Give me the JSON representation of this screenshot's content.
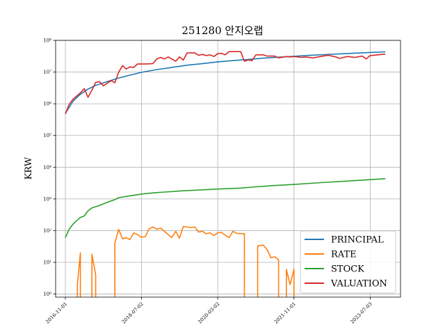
{
  "chart_data": {
    "type": "line",
    "title": "251280 안지오랩",
    "xlabel": "",
    "ylabel": "KRW",
    "y_scale": "log",
    "ylim": [
      0.8,
      100000000
    ],
    "xlim": [
      "2016-08-15",
      "2024-03-01"
    ],
    "yticks": [
      {
        "value": 1,
        "label": "10⁰"
      },
      {
        "value": 10,
        "label": "10¹"
      },
      {
        "value": 100,
        "label": "10²"
      },
      {
        "value": 1000,
        "label": "10³"
      },
      {
        "value": 10000,
        "label": "10⁴"
      },
      {
        "value": 100000,
        "label": "10⁵"
      },
      {
        "value": 1000000,
        "label": "10⁶"
      },
      {
        "value": 10000000,
        "label": "10⁷"
      },
      {
        "value": 100000000,
        "label": "10⁸"
      }
    ],
    "xticks": [
      "2016-11-01",
      "2018-07-02",
      "2020-03-02",
      "2021-11-01",
      "2023-07-03"
    ],
    "grid": true,
    "legend_position": "lower-right",
    "series": [
      {
        "name": "PRINCIPAL",
        "color": "#1f77b4",
        "points": [
          [
            "2016-11-01",
            500000
          ],
          [
            "2017-01-01",
            1200000
          ],
          [
            "2017-03-01",
            2000000
          ],
          [
            "2017-05-01",
            2900000
          ],
          [
            "2017-07-01",
            3800000
          ],
          [
            "2017-10-01",
            5000000
          ],
          [
            "2018-01-01",
            6500000
          ],
          [
            "2018-04-01",
            8000000
          ],
          [
            "2018-07-01",
            9800000
          ],
          [
            "2018-11-01",
            12000000
          ],
          [
            "2019-03-01",
            14000000
          ],
          [
            "2019-07-01",
            16500000
          ],
          [
            "2019-11-01",
            18500000
          ],
          [
            "2020-03-01",
            21000000
          ],
          [
            "2020-07-01",
            23000000
          ],
          [
            "2020-11-01",
            25000000
          ],
          [
            "2021-03-01",
            27500000
          ],
          [
            "2021-07-01",
            29500000
          ],
          [
            "2021-11-01",
            31500000
          ],
          [
            "2022-03-01",
            33500000
          ],
          [
            "2022-07-01",
            35500000
          ],
          [
            "2022-11-01",
            37500000
          ],
          [
            "2023-03-01",
            39500000
          ],
          [
            "2023-07-01",
            41500000
          ],
          [
            "2023-11-01",
            43500000
          ]
        ]
      },
      {
        "name": "RATE",
        "color": "#ff7f0e",
        "segments": [
          [
            [
              "2017-02-05",
              0.5
            ],
            [
              "2017-02-05",
              2
            ],
            [
              "2017-03-01",
              20
            ],
            [
              "2017-03-01",
              0.5
            ]
          ],
          [
            [
              "2017-06-01",
              0.5
            ],
            [
              "2017-06-01",
              18
            ],
            [
              "2017-07-01",
              4
            ],
            [
              "2017-07-01",
              0.5
            ]
          ],
          [
            [
              "2017-12-01",
              0.5
            ],
            [
              "2017-12-01",
              42
            ],
            [
              "2018-01-01",
              110
            ],
            [
              "2018-02-01",
              55
            ],
            [
              "2018-03-01",
              60
            ],
            [
              "2018-04-01",
              52
            ],
            [
              "2018-05-01",
              85
            ],
            [
              "2018-06-01",
              75
            ],
            [
              "2018-07-01",
              62
            ],
            [
              "2018-08-01",
              65
            ],
            [
              "2018-09-01",
              115
            ],
            [
              "2018-10-01",
              130
            ],
            [
              "2018-11-01",
              110
            ],
            [
              "2018-12-01",
              120
            ],
            [
              "2019-02-01",
              75
            ],
            [
              "2019-03-01",
              60
            ],
            [
              "2019-04-01",
              95
            ],
            [
              "2019-05-01",
              58
            ],
            [
              "2019-06-01",
              135
            ],
            [
              "2019-08-01",
              125
            ],
            [
              "2019-09-01",
              130
            ],
            [
              "2019-10-01",
              90
            ],
            [
              "2019-11-01",
              95
            ],
            [
              "2019-12-01",
              80
            ],
            [
              "2020-01-01",
              85
            ],
            [
              "2020-02-01",
              70
            ],
            [
              "2020-03-01",
              85
            ],
            [
              "2020-04-01",
              88
            ],
            [
              "2020-05-01",
              72
            ],
            [
              "2020-06-01",
              60
            ],
            [
              "2020-07-01",
              95
            ],
            [
              "2020-08-01",
              82
            ],
            [
              "2020-10-01",
              80
            ],
            [
              "2020-10-01",
              0.5
            ]
          ],
          [
            [
              "2021-01-15",
              0.5
            ],
            [
              "2021-01-15",
              33
            ],
            [
              "2021-03-01",
              35
            ],
            [
              "2021-04-01",
              25
            ],
            [
              "2021-05-01",
              14
            ],
            [
              "2021-06-01",
              15
            ],
            [
              "2021-07-01",
              12
            ],
            [
              "2021-07-01",
              0.5
            ]
          ],
          [
            [
              "2021-09-01",
              0.5
            ],
            [
              "2021-09-01",
              6
            ],
            [
              "2021-10-01",
              2
            ],
            [
              "2021-11-01",
              6
            ],
            [
              "2021-11-01",
              0.5
            ]
          ]
        ]
      },
      {
        "name": "STOCK",
        "color": "#2ca02c",
        "points": [
          [
            "2016-11-01",
            60
          ],
          [
            "2016-12-01",
            110
          ],
          [
            "2017-01-01",
            160
          ],
          [
            "2017-02-01",
            210
          ],
          [
            "2017-03-01",
            260
          ],
          [
            "2017-04-01",
            290
          ],
          [
            "2017-05-01",
            420
          ],
          [
            "2017-06-01",
            520
          ],
          [
            "2017-08-01",
            620
          ],
          [
            "2017-10-01",
            780
          ],
          [
            "2017-12-01",
            950
          ],
          [
            "2018-01-01",
            1100
          ],
          [
            "2018-04-01",
            1250
          ],
          [
            "2018-07-01",
            1420
          ],
          [
            "2018-10-01",
            1550
          ],
          [
            "2019-01-01",
            1650
          ],
          [
            "2019-06-01",
            1800
          ],
          [
            "2019-12-01",
            1950
          ],
          [
            "2020-03-01",
            2050
          ],
          [
            "2020-09-01",
            2200
          ],
          [
            "2021-01-01",
            2400
          ],
          [
            "2021-06-01",
            2650
          ],
          [
            "2021-11-01",
            2850
          ],
          [
            "2022-06-01",
            3250
          ],
          [
            "2023-01-01",
            3650
          ],
          [
            "2023-07-01",
            4050
          ],
          [
            "2023-11-01",
            4350
          ]
        ]
      },
      {
        "name": "VALUATION",
        "color": "#d62728",
        "points": [
          [
            "2016-11-01",
            480000
          ],
          [
            "2016-12-01",
            950000
          ],
          [
            "2017-01-01",
            1400000
          ],
          [
            "2017-03-01",
            2200000
          ],
          [
            "2017-04-01",
            3000000
          ],
          [
            "2017-05-01",
            1600000
          ],
          [
            "2017-06-01",
            2700000
          ],
          [
            "2017-07-01",
            4700000
          ],
          [
            "2017-08-01",
            5000000
          ],
          [
            "2017-09-01",
            3700000
          ],
          [
            "2017-11-01",
            5400000
          ],
          [
            "2017-12-01",
            4600000
          ],
          [
            "2018-01-01",
            10000000
          ],
          [
            "2018-02-01",
            16000000
          ],
          [
            "2018-03-01",
            12500000
          ],
          [
            "2018-04-01",
            14500000
          ],
          [
            "2018-05-01",
            14000000
          ],
          [
            "2018-06-01",
            18000000
          ],
          [
            "2018-08-01",
            18000000
          ],
          [
            "2018-10-01",
            18500000
          ],
          [
            "2018-11-01",
            26000000
          ],
          [
            "2018-12-01",
            29000000
          ],
          [
            "2019-01-01",
            26000000
          ],
          [
            "2019-02-01",
            30000000
          ],
          [
            "2019-04-01",
            22000000
          ],
          [
            "2019-05-01",
            30000000
          ],
          [
            "2019-06-01",
            24000000
          ],
          [
            "2019-07-01",
            40000000
          ],
          [
            "2019-09-01",
            40000000
          ],
          [
            "2019-10-01",
            34000000
          ],
          [
            "2019-11-01",
            36000000
          ],
          [
            "2019-12-01",
            33000000
          ],
          [
            "2020-01-01",
            35000000
          ],
          [
            "2020-02-01",
            31000000
          ],
          [
            "2020-03-01",
            38000000
          ],
          [
            "2020-04-01",
            39000000
          ],
          [
            "2020-05-01",
            35000000
          ],
          [
            "2020-06-01",
            44000000
          ],
          [
            "2020-09-01",
            44000000
          ],
          [
            "2020-10-01",
            22000000
          ],
          [
            "2020-11-01",
            24000000
          ],
          [
            "2020-12-01",
            23000000
          ],
          [
            "2021-01-01",
            35000000
          ],
          [
            "2021-03-01",
            35000000
          ],
          [
            "2021-04-01",
            32000000
          ],
          [
            "2021-06-01",
            32000000
          ],
          [
            "2021-07-01",
            28000000
          ],
          [
            "2021-09-01",
            31000000
          ],
          [
            "2021-10-01",
            30000000
          ],
          [
            "2021-11-01",
            31000000
          ],
          [
            "2022-01-01",
            29000000
          ],
          [
            "2022-02-01",
            30000000
          ],
          [
            "2022-04-01",
            28000000
          ],
          [
            "2022-06-01",
            31000000
          ],
          [
            "2022-08-01",
            34000000
          ],
          [
            "2022-10-01",
            30000000
          ],
          [
            "2022-11-01",
            27000000
          ],
          [
            "2023-01-01",
            31000000
          ],
          [
            "2023-03-01",
            29000000
          ],
          [
            "2023-05-01",
            32000000
          ],
          [
            "2023-06-01",
            26000000
          ],
          [
            "2023-07-01",
            33000000
          ],
          [
            "2023-09-01",
            35000000
          ],
          [
            "2023-11-01",
            37000000
          ]
        ]
      }
    ]
  }
}
